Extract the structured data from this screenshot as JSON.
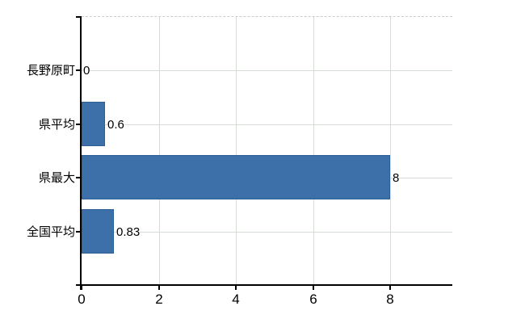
{
  "chart_data": {
    "type": "bar",
    "orientation": "horizontal",
    "title": "",
    "categories": [
      "長野原町",
      "県平均",
      "県最大",
      "全国平均"
    ],
    "values": [
      0,
      0.6,
      8,
      0.83
    ],
    "value_labels": [
      "0",
      "0.6",
      "8",
      "0.83"
    ],
    "x_ticks": [
      0,
      2,
      4,
      6,
      8
    ],
    "x_tick_labels": [
      "0",
      "2",
      "4",
      "6",
      "8"
    ],
    "xlim": [
      0,
      9.6
    ],
    "grid": true,
    "legend": "none",
    "colors": {
      "bar_fill": "#3d6fa8",
      "bar_border": "#2d5f97",
      "gridline": "#d5dbd5",
      "top_border_dashed": "#cccccc",
      "axis": "#000000",
      "text": "#000000"
    }
  }
}
